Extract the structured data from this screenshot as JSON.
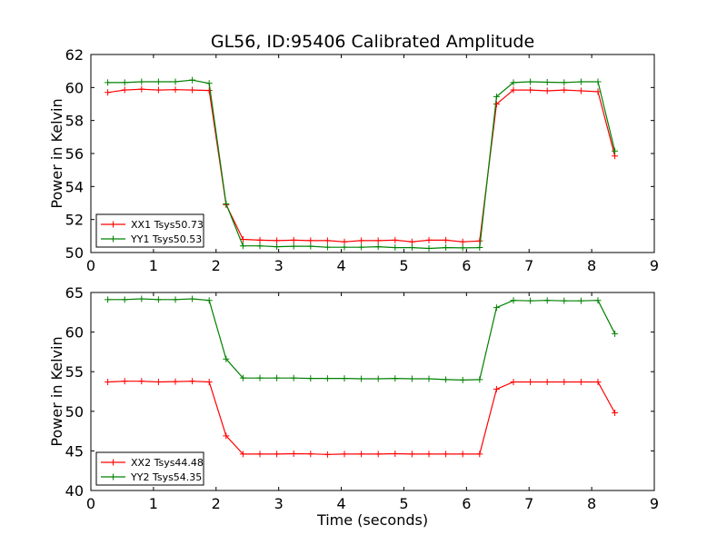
{
  "chart_data": [
    {
      "type": "line",
      "title": "GL56, ID:95406 Calibrated Amplitude",
      "xlabel": "",
      "ylabel": "Power in Kelvin",
      "xlim": [
        0,
        9
      ],
      "ylim": [
        50,
        62
      ],
      "xticks": [
        0,
        1,
        2,
        3,
        4,
        5,
        6,
        7,
        8,
        9
      ],
      "yticks": [
        50,
        52,
        54,
        56,
        58,
        60,
        62
      ],
      "legend_position": "lower-left",
      "x": [
        0.27,
        0.54,
        0.81,
        1.08,
        1.35,
        1.62,
        1.89,
        2.16,
        2.43,
        2.7,
        2.97,
        3.24,
        3.51,
        3.78,
        4.05,
        4.32,
        4.59,
        4.86,
        5.13,
        5.4,
        5.67,
        5.94,
        6.21,
        6.48,
        6.75,
        7.02,
        7.29,
        7.56,
        7.83,
        8.1,
        8.37
      ],
      "series": [
        {
          "name": "XX1 Tsys50.73",
          "color": "#ff0000",
          "values": [
            59.7,
            59.85,
            59.9,
            59.85,
            59.87,
            59.85,
            59.82,
            52.9,
            50.8,
            50.75,
            50.72,
            50.75,
            50.72,
            50.72,
            50.65,
            50.72,
            50.72,
            50.75,
            50.65,
            50.75,
            50.75,
            50.65,
            50.7,
            59.0,
            59.85,
            59.85,
            59.8,
            59.85,
            59.8,
            59.75,
            55.85
          ]
        },
        {
          "name": "YY1 Tsys50.53",
          "color": "#008000",
          "values": [
            60.3,
            60.3,
            60.35,
            60.35,
            60.35,
            60.45,
            60.25,
            52.95,
            50.4,
            50.4,
            50.35,
            50.38,
            50.38,
            50.32,
            50.32,
            50.32,
            50.35,
            50.3,
            50.3,
            50.25,
            50.3,
            50.28,
            50.3,
            59.45,
            60.3,
            60.35,
            60.32,
            60.3,
            60.35,
            60.35,
            56.15
          ]
        }
      ]
    },
    {
      "type": "line",
      "title": "",
      "xlabel": "Time (seconds)",
      "ylabel": "Power in Kelvin",
      "xlim": [
        0,
        9
      ],
      "ylim": [
        40,
        65
      ],
      "xticks": [
        0,
        1,
        2,
        3,
        4,
        5,
        6,
        7,
        8,
        9
      ],
      "yticks": [
        40,
        45,
        50,
        55,
        60,
        65
      ],
      "legend_position": "lower-left",
      "x": [
        0.27,
        0.54,
        0.81,
        1.08,
        1.35,
        1.62,
        1.89,
        2.16,
        2.43,
        2.7,
        2.97,
        3.24,
        3.51,
        3.78,
        4.05,
        4.32,
        4.59,
        4.86,
        5.13,
        5.4,
        5.67,
        5.94,
        6.21,
        6.48,
        6.75,
        7.02,
        7.29,
        7.56,
        7.83,
        8.1,
        8.37
      ],
      "series": [
        {
          "name": "XX2 Tsys44.48",
          "color": "#ff0000",
          "values": [
            53.7,
            53.8,
            53.8,
            53.7,
            53.75,
            53.8,
            53.7,
            46.9,
            44.6,
            44.6,
            44.6,
            44.65,
            44.62,
            44.55,
            44.6,
            44.6,
            44.6,
            44.65,
            44.6,
            44.6,
            44.6,
            44.6,
            44.6,
            52.8,
            53.7,
            53.7,
            53.7,
            53.7,
            53.7,
            53.7,
            49.8
          ]
        },
        {
          "name": "YY2 Tsys54.35",
          "color": "#008000",
          "values": [
            64.1,
            64.1,
            64.2,
            64.1,
            64.1,
            64.2,
            64.0,
            56.6,
            54.2,
            54.2,
            54.2,
            54.2,
            54.15,
            54.15,
            54.15,
            54.1,
            54.1,
            54.15,
            54.1,
            54.1,
            54.0,
            53.95,
            54.0,
            63.1,
            64.0,
            63.95,
            64.0,
            63.95,
            63.95,
            64.0,
            59.8
          ]
        }
      ]
    }
  ]
}
